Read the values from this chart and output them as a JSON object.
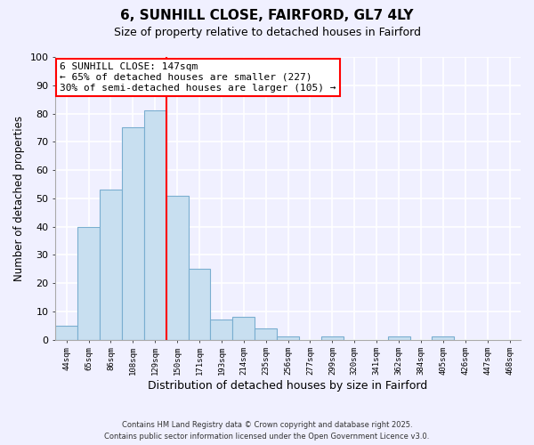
{
  "title": "6, SUNHILL CLOSE, FAIRFORD, GL7 4LY",
  "subtitle": "Size of property relative to detached houses in Fairford",
  "xlabel": "Distribution of detached houses by size in Fairford",
  "ylabel": "Number of detached properties",
  "bar_labels": [
    "44sqm",
    "65sqm",
    "86sqm",
    "108sqm",
    "129sqm",
    "150sqm",
    "171sqm",
    "193sqm",
    "214sqm",
    "235sqm",
    "256sqm",
    "277sqm",
    "299sqm",
    "320sqm",
    "341sqm",
    "362sqm",
    "384sqm",
    "405sqm",
    "426sqm",
    "447sqm",
    "468sqm"
  ],
  "bar_values": [
    5,
    40,
    53,
    75,
    81,
    51,
    25,
    7,
    8,
    4,
    1,
    0,
    1,
    0,
    0,
    1,
    0,
    1,
    0,
    0,
    0
  ],
  "bar_color": "#c8dff0",
  "bar_edge_color": "#7aaed0",
  "annotation_title": "6 SUNHILL CLOSE: 147sqm",
  "annotation_line1": "← 65% of detached houses are smaller (227)",
  "annotation_line2": "30% of semi-detached houses are larger (105) →",
  "ylim": [
    0,
    100
  ],
  "yticks": [
    0,
    10,
    20,
    30,
    40,
    50,
    60,
    70,
    80,
    90,
    100
  ],
  "background_color": "#f0f0ff",
  "grid_color": "#ffffff",
  "footer_line1": "Contains HM Land Registry data © Crown copyright and database right 2025.",
  "footer_line2": "Contains public sector information licensed under the Open Government Licence v3.0."
}
